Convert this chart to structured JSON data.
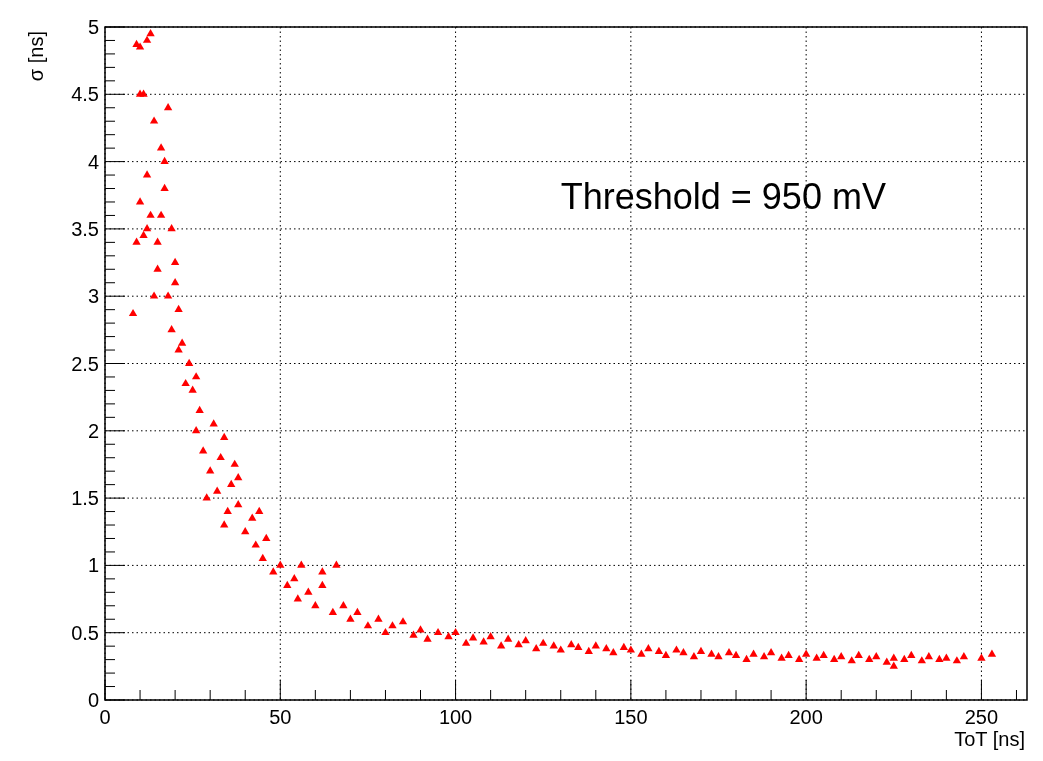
{
  "chart_data": {
    "type": "scatter",
    "xlabel": "ToT [ns]",
    "ylabel": "σ [ns]",
    "annotations": [
      "Threshold = 950 mV"
    ],
    "xlim": [
      0,
      263
    ],
    "ylim": [
      0,
      5
    ],
    "xticks": [
      0,
      50,
      100,
      150,
      200,
      250
    ],
    "yticks": [
      0,
      0.5,
      1,
      1.5,
      2,
      2.5,
      3,
      3.5,
      4,
      4.5,
      5
    ],
    "grid": true,
    "marker": "triangle",
    "series": [
      {
        "color": "#ff0000",
        "x": [
          8,
          9,
          10,
          10,
          11,
          12,
          13,
          11,
          12,
          14,
          13,
          15,
          16,
          17,
          18,
          19,
          14,
          15,
          18,
          20,
          21,
          19,
          22,
          24,
          23,
          25,
          26,
          27,
          28,
          29,
          30,
          32,
          33,
          34,
          35,
          36,
          37,
          38,
          40,
          42,
          43,
          45,
          46,
          48,
          50,
          52,
          54,
          55,
          58,
          60,
          62,
          65,
          66,
          68,
          70,
          72,
          75,
          78,
          80,
          82,
          85,
          88,
          90,
          92,
          95,
          98,
          100,
          103,
          105,
          108,
          110,
          113,
          115,
          118,
          120,
          123,
          125,
          128,
          130,
          133,
          135,
          138,
          140,
          143,
          145,
          148,
          150,
          153,
          155,
          158,
          160,
          163,
          165,
          168,
          170,
          173,
          175,
          178,
          180,
          183,
          185,
          188,
          190,
          193,
          195,
          198,
          200,
          203,
          205,
          208,
          210,
          213,
          215,
          218,
          220,
          223,
          225,
          228,
          230,
          233,
          235,
          238,
          240,
          243,
          245,
          250,
          253,
          225,
          9,
          12,
          16,
          17,
          20,
          10,
          21,
          26,
          31,
          34,
          38,
          44,
          56,
          62
        ],
        "values": [
          2.87,
          4.87,
          4.85,
          3.7,
          4.5,
          4.9,
          4.95,
          3.45,
          3.9,
          4.3,
          3.6,
          3.4,
          4.1,
          3.8,
          4.4,
          3.5,
          3.0,
          3.2,
          3.0,
          3.25,
          2.9,
          2.75,
          2.65,
          2.5,
          2.35,
          2.3,
          2.0,
          2.15,
          1.85,
          1.5,
          1.7,
          1.55,
          1.8,
          1.3,
          1.4,
          1.6,
          1.75,
          1.45,
          1.25,
          1.35,
          1.15,
          1.05,
          1.2,
          0.95,
          1.0,
          0.85,
          0.9,
          0.75,
          0.8,
          0.7,
          0.85,
          0.65,
          1.0,
          0.7,
          0.6,
          0.65,
          0.55,
          0.6,
          0.5,
          0.55,
          0.58,
          0.48,
          0.52,
          0.45,
          0.5,
          0.47,
          0.5,
          0.42,
          0.46,
          0.43,
          0.47,
          0.4,
          0.45,
          0.41,
          0.44,
          0.38,
          0.42,
          0.4,
          0.37,
          0.41,
          0.39,
          0.36,
          0.4,
          0.38,
          0.35,
          0.39,
          0.37,
          0.34,
          0.38,
          0.36,
          0.33,
          0.37,
          0.35,
          0.32,
          0.36,
          0.34,
          0.32,
          0.35,
          0.33,
          0.3,
          0.34,
          0.32,
          0.35,
          0.31,
          0.33,
          0.3,
          0.34,
          0.31,
          0.33,
          0.3,
          0.32,
          0.29,
          0.33,
          0.3,
          0.32,
          0.28,
          0.31,
          0.3,
          0.33,
          0.29,
          0.32,
          0.3,
          0.31,
          0.29,
          0.32,
          0.31,
          0.34,
          0.25,
          3.4,
          3.5,
          3.6,
          4.0,
          3.1,
          4.5,
          2.6,
          2.4,
          2.05,
          1.95,
          1.65,
          1.4,
          1.0,
          0.95
        ]
      }
    ]
  }
}
